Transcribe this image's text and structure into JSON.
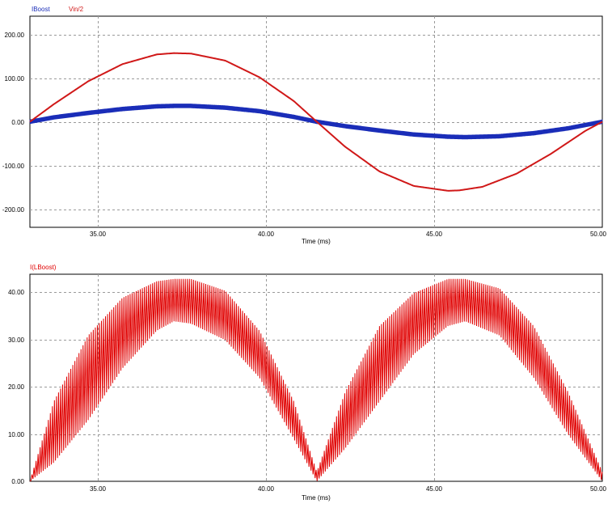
{
  "chart_data": [
    {
      "type": "line",
      "title": "",
      "xlabel": "Time (ms)",
      "ylabel": "",
      "xlim": [
        33.3,
        50.0
      ],
      "ylim": [
        -240,
        240
      ],
      "grid": true,
      "legend": "top-left",
      "x_ticks": [
        35,
        40,
        45,
        50
      ],
      "x_tick_labels": [
        "35.00",
        "40.00",
        "45.00",
        "50.00"
      ],
      "y_ticks": [
        200,
        100,
        0,
        -100,
        -200
      ],
      "y_tick_labels": [
        "200.00",
        "100.00",
        "0.00",
        "-100.00",
        "-200.00"
      ],
      "series": [
        {
          "name": "IBoost",
          "color": "#1a2db8",
          "style": "ripple",
          "ripple_amplitude": 5,
          "x": [
            33.3,
            34.0,
            35.0,
            36.0,
            37.0,
            37.5,
            38.0,
            39.0,
            40.0,
            41.0,
            41.67,
            42.5,
            43.5,
            44.5,
            45.5,
            46.0,
            47.0,
            48.0,
            49.0,
            50.0
          ],
          "y": [
            0,
            10,
            20,
            29,
            35,
            36,
            36,
            32,
            24,
            11,
            0,
            -10,
            -20,
            -29,
            -34,
            -35,
            -33,
            -26,
            -15,
            0
          ]
        },
        {
          "name": "Vin/2",
          "color": "#d01818",
          "style": "smooth",
          "x": [
            33.3,
            34.0,
            35.0,
            36.0,
            37.0,
            37.5,
            38.0,
            39.0,
            40.0,
            41.0,
            41.67,
            42.5,
            43.5,
            44.5,
            45.5,
            45.83,
            46.5,
            47.5,
            48.5,
            49.5,
            50.0
          ],
          "y": [
            0,
            40,
            92,
            131,
            153,
            156,
            155,
            139,
            101,
            47,
            0,
            -57,
            -113,
            -146,
            -157,
            -156,
            -148,
            -118,
            -73,
            -21,
            0
          ]
        }
      ]
    },
    {
      "type": "line",
      "title": "",
      "xlabel": "Time (ms)",
      "ylabel": "",
      "xlim": [
        33.3,
        50.0
      ],
      "ylim": [
        0,
        44
      ],
      "grid": true,
      "legend": "top-left",
      "x_ticks": [
        35,
        40,
        45,
        50
      ],
      "x_tick_labels": [
        "35.00",
        "40.00",
        "45.00",
        "50.00"
      ],
      "y_ticks": [
        40,
        30,
        20,
        10,
        0
      ],
      "y_tick_labels": [
        "40.00",
        "30.00",
        "20.00",
        "10.00",
        "0.00"
      ],
      "series": [
        {
          "name": "I(LBoost)",
          "color": "#e00000",
          "style": "envelope",
          "x": [
            33.3,
            34.0,
            35.0,
            36.0,
            37.0,
            37.5,
            38.0,
            39.0,
            40.0,
            41.0,
            41.67,
            42.5,
            43.5,
            44.5,
            45.5,
            46.0,
            47.0,
            48.0,
            49.0,
            50.0
          ],
          "upper": [
            0,
            17,
            31,
            39,
            42.5,
            43,
            43,
            40.5,
            32,
            17,
            2,
            19,
            33,
            40,
            43,
            43,
            41,
            33,
            19,
            2
          ],
          "lower": [
            0,
            4,
            13,
            24,
            32,
            34,
            33.5,
            30,
            22,
            9,
            0,
            7,
            17,
            27,
            33,
            34,
            31,
            22,
            10,
            0
          ]
        }
      ]
    }
  ]
}
